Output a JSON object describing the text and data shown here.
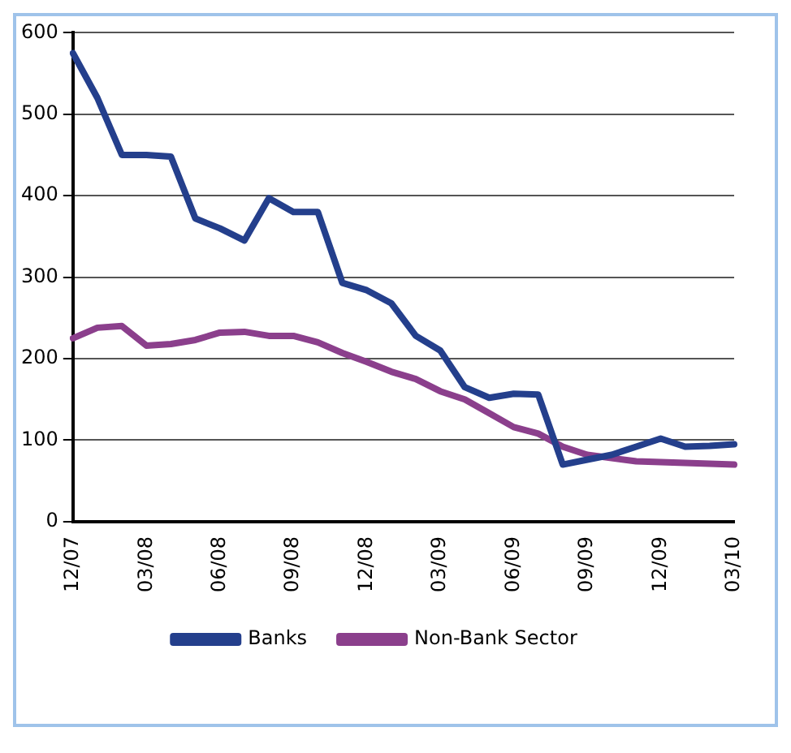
{
  "chart_data": {
    "type": "line",
    "categories": [
      "12/07",
      null,
      null,
      "03/08",
      null,
      null,
      "06/08",
      null,
      null,
      "09/08",
      null,
      null,
      "12/08",
      null,
      null,
      "03/09",
      null,
      null,
      "06/09",
      null,
      null,
      "09/09",
      null,
      null,
      "12/09",
      null,
      null,
      "03/10"
    ],
    "series": [
      {
        "name": "Banks",
        "color": "#243f8c",
        "values": [
          575,
          520,
          450,
          450,
          448,
          372,
          360,
          345,
          397,
          380,
          380,
          293,
          284,
          268,
          228,
          210,
          165,
          152,
          157,
          156,
          70,
          76,
          82,
          92,
          102,
          92,
          93,
          95
        ]
      },
      {
        "name": "Non-Bank Sector",
        "color": "#8b3f8c",
        "values": [
          225,
          238,
          240,
          216,
          218,
          223,
          232,
          233,
          228,
          228,
          220,
          207,
          196,
          184,
          175,
          160,
          150,
          133,
          116,
          108,
          92,
          82,
          78,
          74,
          73,
          72,
          71,
          70
        ]
      }
    ],
    "ylim": [
      0,
      600
    ],
    "yticks": [
      0,
      100,
      200,
      300,
      400,
      500,
      600
    ],
    "grid": "y",
    "legend": "bottom",
    "marker": "none",
    "line_style": "solid"
  }
}
